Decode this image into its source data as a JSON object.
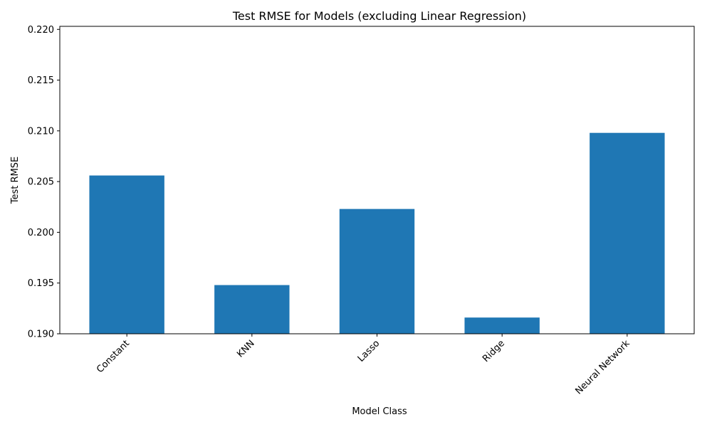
{
  "chart_data": {
    "type": "bar",
    "title": "Test RMSE for Models (excluding Linear Regression)",
    "xlabel": "Model Class",
    "ylabel": "Test RMSE",
    "categories": [
      "Constant",
      "KNN",
      "Lasso",
      "Ridge",
      "Neural Network"
    ],
    "values": [
      0.2056,
      0.1948,
      0.2023,
      0.1916,
      0.2098
    ],
    "ylim": [
      0.19,
      0.2203
    ],
    "yticks": [
      0.19,
      0.195,
      0.2,
      0.205,
      0.21,
      0.215,
      0.22
    ],
    "ytick_labels": [
      "0.190",
      "0.195",
      "0.200",
      "0.205",
      "0.210",
      "0.215",
      "0.220"
    ],
    "xtick_rotation_deg": 45,
    "grid": false,
    "bar_color": "#1f77b4"
  }
}
